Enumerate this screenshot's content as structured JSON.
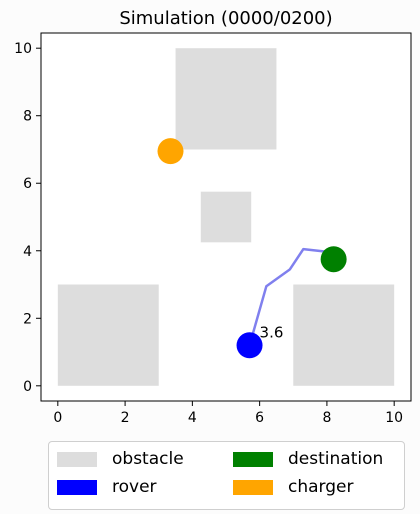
{
  "chart_data": {
    "type": "scatter",
    "title": "Simulation (0000/0200)",
    "xlabel": "",
    "ylabel": "",
    "xlim": [
      -0.5,
      10.5
    ],
    "ylim": [
      -0.45,
      10.45
    ],
    "xticks": [
      0,
      2,
      4,
      6,
      8,
      10
    ],
    "yticks": [
      0,
      2,
      4,
      6,
      8,
      10
    ],
    "grid": false,
    "legend_position": "below",
    "obstacles": [
      {
        "x0": 0.0,
        "y0": 0.0,
        "x1": 3.0,
        "y1": 3.0
      },
      {
        "x0": 3.5,
        "y0": 7.0,
        "x1": 6.5,
        "y1": 10.0
      },
      {
        "x0": 4.25,
        "y0": 4.25,
        "x1": 5.75,
        "y1": 5.75
      },
      {
        "x0": 7.0,
        "y0": 0.0,
        "x1": 10.0,
        "y1": 3.0
      }
    ],
    "path": [
      {
        "x": 5.7,
        "y": 1.2
      },
      {
        "x": 6.2,
        "y": 2.95
      },
      {
        "x": 6.9,
        "y": 3.45
      },
      {
        "x": 7.3,
        "y": 4.05
      },
      {
        "x": 8.2,
        "y": 3.95
      }
    ],
    "rover": {
      "x": 5.7,
      "y": 1.2,
      "label": "3.6"
    },
    "destination": {
      "x": 8.2,
      "y": 3.75
    },
    "charger": {
      "x": 3.35,
      "y": 6.95
    }
  },
  "legend": [
    {
      "label": "obstacle",
      "color": "#dddddd"
    },
    {
      "label": "destination",
      "color": "#008000"
    },
    {
      "label": "rover",
      "color": "#0000ff"
    },
    {
      "label": "charger",
      "color": "#ffa500"
    }
  ],
  "colors": {
    "obstacle": "#dddddd",
    "rover": "#0000ff",
    "destination": "#008000",
    "charger": "#ffa500",
    "path": "#8080ee"
  }
}
